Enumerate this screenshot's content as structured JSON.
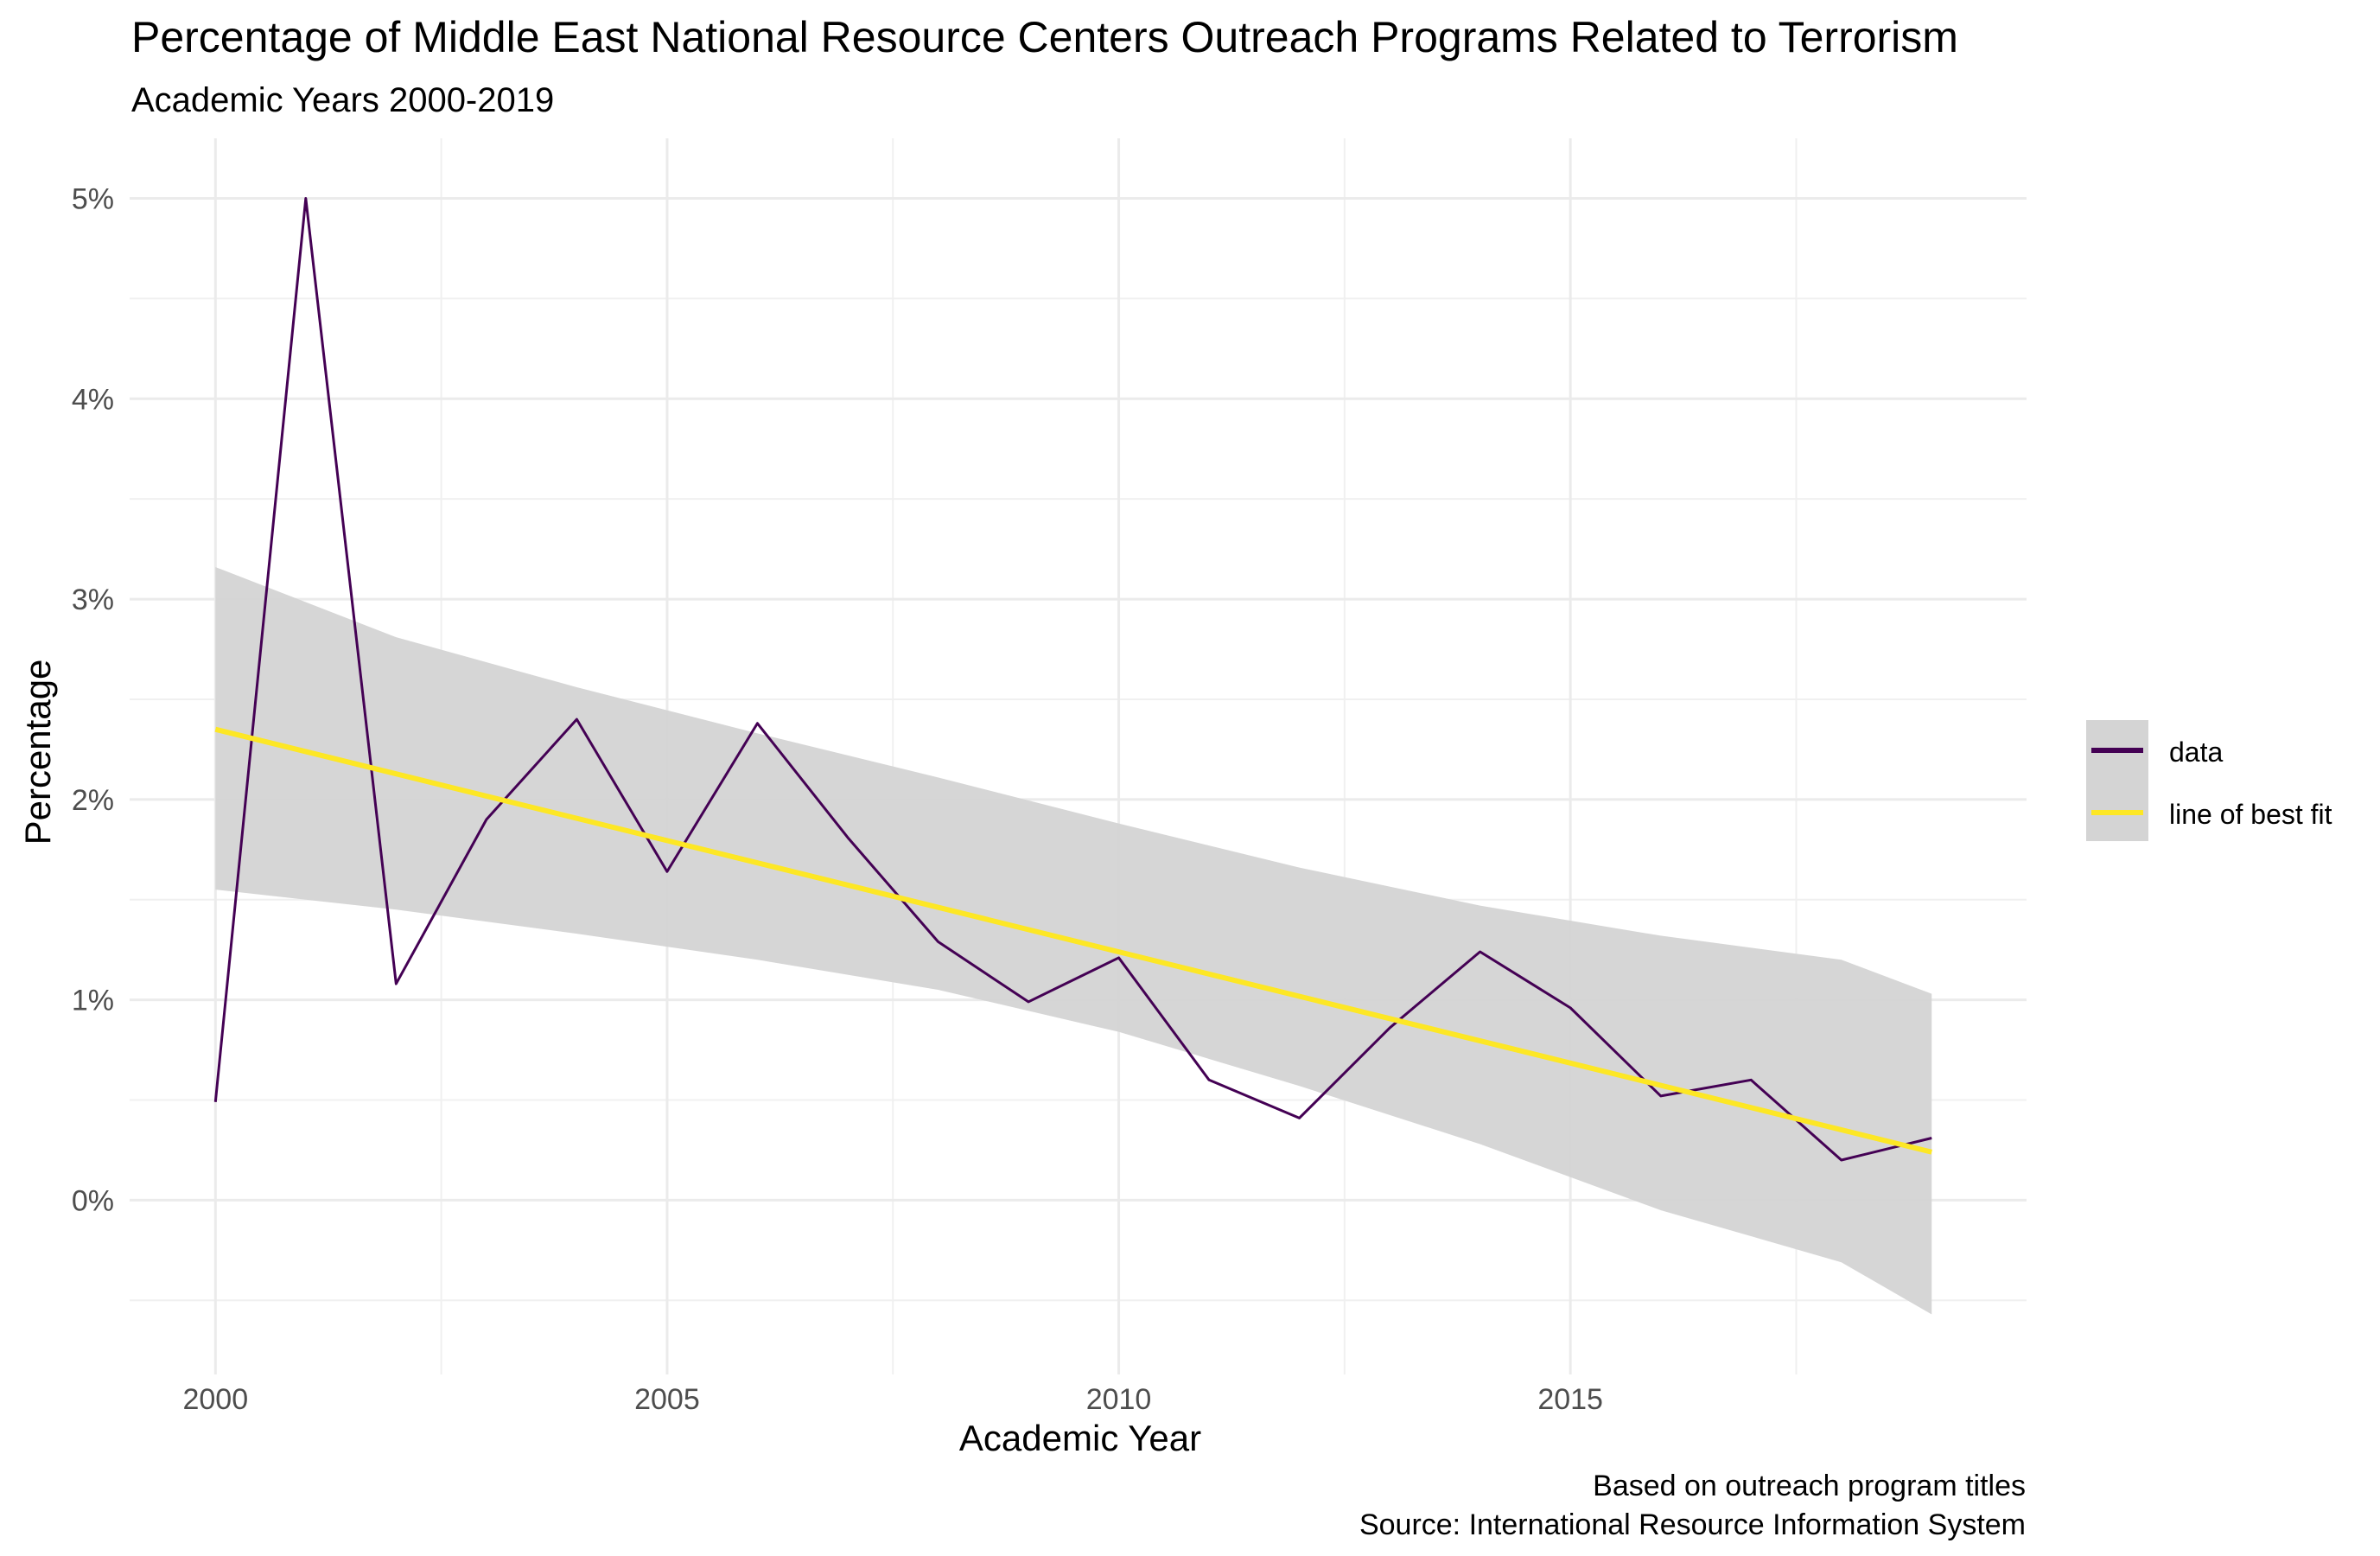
{
  "chart_data": {
    "type": "line",
    "title": "Percentage of Middle East National Resource Centers Outreach Programs Related to Terrorism",
    "subtitle": "Academic Years 2000-2019",
    "xlabel": "Academic Year",
    "ylabel": "Percentage",
    "caption_lines": [
      "Based on outreach program titles",
      "Source: International Resource Information System"
    ],
    "xlim": [
      1999.05,
      2020.05
    ],
    "ylim": [
      -0.87,
      5.3
    ],
    "x_ticks": [
      2000,
      2005,
      2010,
      2015
    ],
    "x_tick_labels": [
      "2000",
      "2005",
      "2010",
      "2015"
    ],
    "y_ticks": [
      0,
      1,
      2,
      3,
      4,
      5
    ],
    "y_tick_labels": [
      "0%",
      "1%",
      "2%",
      "3%",
      "4%",
      "5%"
    ],
    "grid": true,
    "legend_position": "right",
    "series": [
      {
        "name": "data",
        "color": "#440154",
        "x": [
          2000,
          2001,
          2002,
          2003,
          2004,
          2005,
          2006,
          2007,
          2008,
          2009,
          2010,
          2011,
          2012,
          2013,
          2014,
          2015,
          2016,
          2017,
          2018,
          2019
        ],
        "y": [
          0.49,
          5.0,
          1.08,
          1.9,
          2.4,
          1.64,
          2.38,
          1.81,
          1.29,
          0.99,
          1.21,
          0.6,
          0.41,
          0.86,
          1.24,
          0.96,
          0.52,
          0.6,
          0.2,
          0.31
        ]
      },
      {
        "name": "line of best fit",
        "color": "#FDE725",
        "x": [
          2000,
          2019
        ],
        "y": [
          2.35,
          0.24
        ],
        "band_color": "#d4d4d4",
        "band_upper": [
          3.16,
          2.81,
          2.56,
          2.33,
          2.11,
          1.88,
          1.66,
          1.47,
          1.32,
          1.2,
          1.03
        ],
        "band_lower": [
          1.55,
          1.45,
          1.33,
          1.2,
          1.05,
          0.84,
          0.57,
          0.28,
          -0.05,
          -0.31,
          -0.57
        ],
        "band_x": [
          2000,
          2002,
          2004,
          2006,
          2008,
          2010,
          2012,
          2014,
          2016,
          2018,
          2019
        ]
      }
    ]
  }
}
